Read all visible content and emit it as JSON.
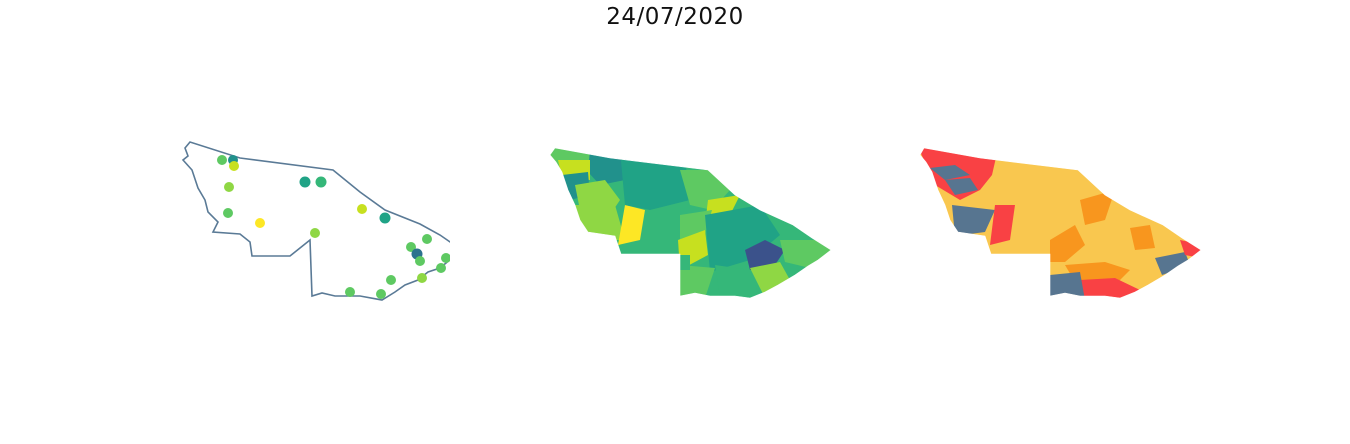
{
  "figure": {
    "title": "24/07/2020"
  },
  "colors": {
    "outline": "#5a7a96",
    "viridis": [
      "#fde725",
      "#c7e01f",
      "#8fd744",
      "#5ec962",
      "#35b779",
      "#20a386",
      "#21918c",
      "#2c728e",
      "#3b528b"
    ],
    "risk": {
      "very_high": "#f94144",
      "high": "#f8961e",
      "medium": "#f9c74f",
      "low": "#577590"
    }
  },
  "panels": [
    {
      "name": "stations",
      "kind": "points"
    },
    {
      "name": "viridis-choropleth",
      "kind": "choropleth"
    },
    {
      "name": "risk-choropleth",
      "kind": "choropleth"
    }
  ]
}
